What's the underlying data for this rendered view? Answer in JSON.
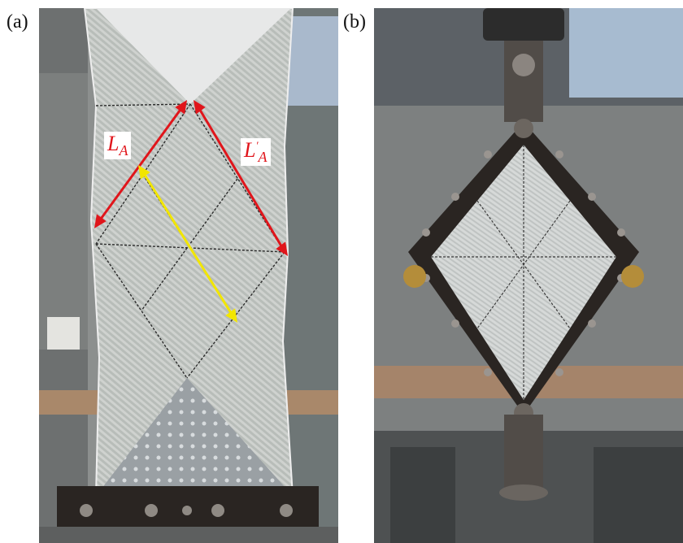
{
  "figure": {
    "panels": [
      {
        "label": "(a)"
      },
      {
        "label": "(b)"
      }
    ],
    "annotations": {
      "la_base": "L",
      "la_sub": "A",
      "lap_base": "L",
      "lap_sub": "A",
      "lap_prime": "′"
    },
    "colors": {
      "arrow_primary": "#e0151b",
      "arrow_secondary": "#f2e600",
      "frame": "#2a2522",
      "fabric": "#c9ccc9"
    }
  }
}
